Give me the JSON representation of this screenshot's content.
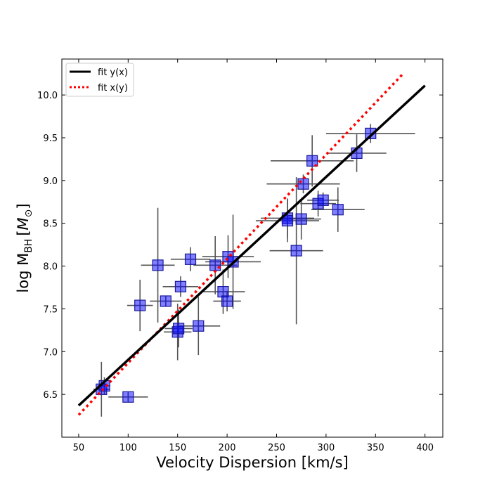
{
  "chart_data": {
    "type": "scatter",
    "title": "",
    "xlabel": "Velocity Dispersion [km/s]",
    "ylabel_main": "log M",
    "ylabel_sub": "BH",
    "ylabel_unit": "M",
    "ylabel_unit_symbol": "⊙",
    "xlim": [
      33,
      418
    ],
    "ylim": [
      6.0,
      10.42
    ],
    "xticks": [
      50,
      100,
      150,
      200,
      250,
      300,
      350,
      400
    ],
    "yticks": [
      6.5,
      7.0,
      7.5,
      8.0,
      8.5,
      9.0,
      9.5,
      10.0
    ],
    "xtick_labels": [
      "50",
      "100",
      "150",
      "200",
      "250",
      "300",
      "350",
      "400"
    ],
    "ytick_labels": [
      "6.5",
      "7.0",
      "7.5",
      "8.0",
      "8.5",
      "9.0",
      "9.5",
      "10.0"
    ],
    "legend": [
      {
        "label": "fit y(x)",
        "style": "solid",
        "color": "#000000"
      },
      {
        "label": "fit x(y)",
        "style": "dotted",
        "color": "#ff0000"
      }
    ],
    "legend_position": "top-left",
    "marker_color": "#0000ff",
    "errorbar_color": "#555555",
    "points": [
      {
        "x": 73,
        "y": 6.56,
        "xerr": 8,
        "yerr": 0.32
      },
      {
        "x": 76,
        "y": 6.6,
        "xerr": 6,
        "yerr": 0.1
      },
      {
        "x": 100,
        "y": 6.47,
        "xerr": 20,
        "yerr": 0.06
      },
      {
        "x": 112,
        "y": 7.54,
        "xerr": 13,
        "yerr": 0.3
      },
      {
        "x": 130,
        "y": 8.01,
        "xerr": 17,
        "yerr": 0.67
      },
      {
        "x": 138,
        "y": 7.59,
        "xerr": 16,
        "yerr": 0.06
      },
      {
        "x": 150,
        "y": 7.23,
        "xerr": 14,
        "yerr": 0.33
      },
      {
        "x": 151,
        "y": 7.27,
        "xerr": 14,
        "yerr": 0.22
      },
      {
        "x": 153,
        "y": 7.76,
        "xerr": 18,
        "yerr": 0.12
      },
      {
        "x": 163,
        "y": 8.08,
        "xerr": 20,
        "yerr": 0.14
      },
      {
        "x": 171,
        "y": 7.3,
        "xerr": 22,
        "yerr": 0.34
      },
      {
        "x": 188,
        "y": 8.01,
        "xerr": 22,
        "yerr": 0.34
      },
      {
        "x": 196,
        "y": 7.7,
        "xerr": 22,
        "yerr": 0.26
      },
      {
        "x": 200,
        "y": 7.59,
        "xerr": 14,
        "yerr": 0.12
      },
      {
        "x": 201,
        "y": 8.11,
        "xerr": 26,
        "yerr": 0.25
      },
      {
        "x": 206,
        "y": 8.05,
        "xerr": 28,
        "yerr": 0.55
      },
      {
        "x": 261,
        "y": 8.56,
        "xerr": 27,
        "yerr": 0.23
      },
      {
        "x": 261,
        "y": 8.53,
        "xerr": 32,
        "yerr": 0.25
      },
      {
        "x": 270,
        "y": 8.18,
        "xerr": 27,
        "yerr": 0.86
      },
      {
        "x": 275,
        "y": 8.55,
        "xerr": 20,
        "yerr": 0.24
      },
      {
        "x": 277,
        "y": 8.96,
        "xerr": 37,
        "yerr": 0.11
      },
      {
        "x": 286,
        "y": 9.23,
        "xerr": 42,
        "yerr": 0.3
      },
      {
        "x": 292,
        "y": 8.73,
        "xerr": 18,
        "yerr": 0.15
      },
      {
        "x": 297,
        "y": 8.77,
        "xerr": 16,
        "yerr": 0.09
      },
      {
        "x": 312,
        "y": 8.66,
        "xerr": 27,
        "yerr": 0.26
      },
      {
        "x": 331,
        "y": 9.32,
        "xerr": 30,
        "yerr": 0.22
      },
      {
        "x": 345,
        "y": 9.55,
        "xerr": 45,
        "yerr": 0.11
      }
    ],
    "fit_yx": {
      "x": [
        50,
        400
      ],
      "y": [
        6.37,
        10.11
      ]
    },
    "fit_xy": {
      "x": [
        50,
        378
      ],
      "y": [
        6.26,
        10.25
      ]
    }
  }
}
